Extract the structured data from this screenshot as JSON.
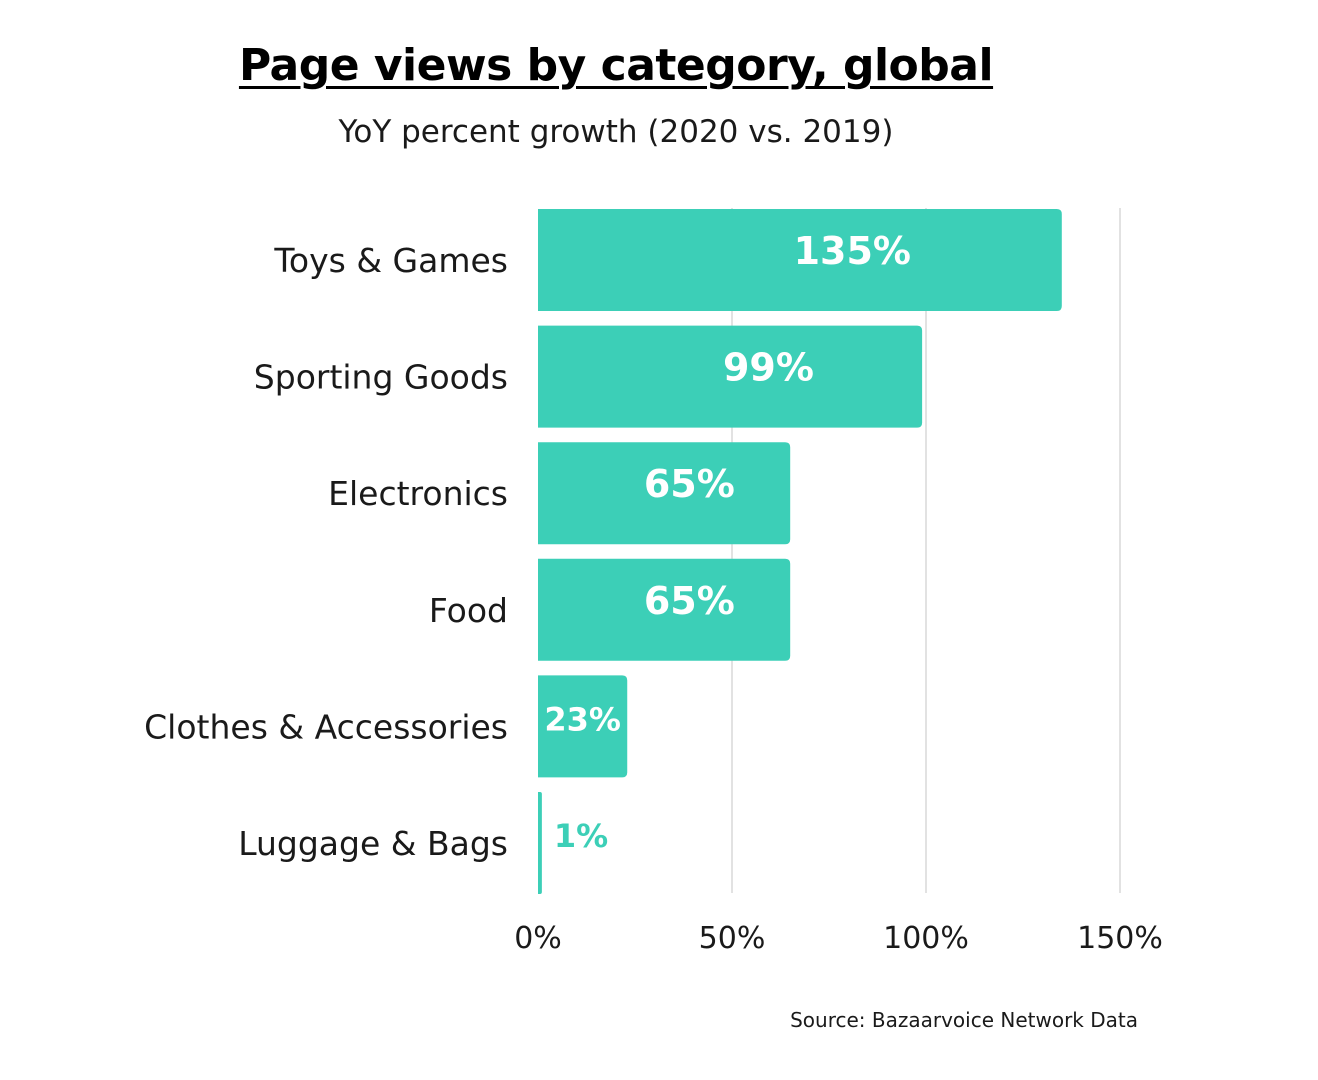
{
  "title": "Page views by category, global",
  "subtitle": "YoY percent growth (2020 vs. 2019)",
  "source": "Source: Bazaarvoice Network Data",
  "colors": {
    "bar": "#3ccfb7",
    "bar_label": "#ffffff",
    "outside_label": "#3ccfb7",
    "gridline": "#d9d9d9",
    "text": "#1a1a1a"
  },
  "chart_data": {
    "type": "bar",
    "orientation": "horizontal",
    "title": "Page views by category, global",
    "subtitle": "YoY percent growth (2020 vs. 2019)",
    "categories": [
      "Toys & Games",
      "Sporting Goods",
      "Electronics",
      "Food",
      "Clothes & Accessories",
      "Luggage & Bags"
    ],
    "values": [
      135,
      99,
      65,
      65,
      23,
      1
    ],
    "data_labels": [
      "135%",
      "99%",
      "65%",
      "65%",
      "23%",
      "1%"
    ],
    "xlim": [
      0,
      150
    ],
    "xticks": [
      0,
      50,
      100,
      150
    ],
    "xtick_labels": [
      "0%",
      "50%",
      "100%",
      "150%"
    ],
    "grid": "vertical",
    "xlabel": "",
    "ylabel": ""
  }
}
